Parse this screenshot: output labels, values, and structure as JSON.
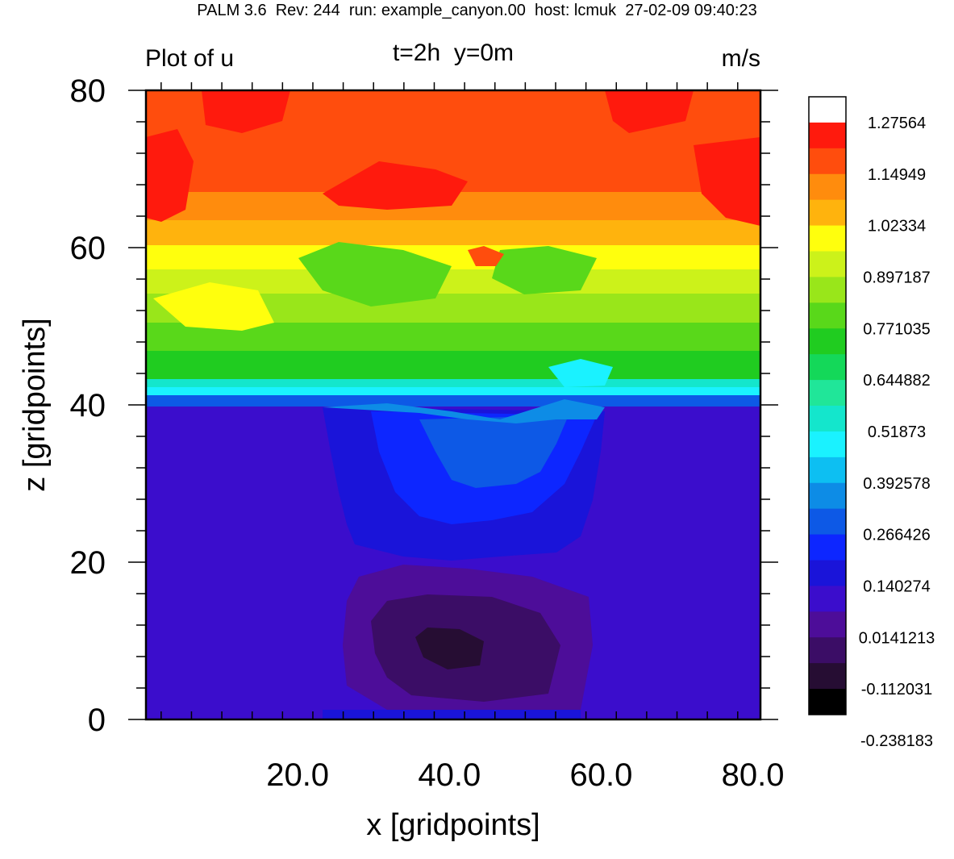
{
  "header": "PALM 3.6  Rev: 244  run: example_canyon.00  host: lcmuk  27-02-09 09:40:23",
  "chart_data": {
    "type": "heatmap",
    "title": "Plot of u",
    "subtitle": "t=2h  y=0m",
    "units": "m/s",
    "xlabel": "x [gridpoints]",
    "ylabel": "z [gridpoints]",
    "xlim": [
      0,
      81
    ],
    "ylim": [
      0,
      80
    ],
    "xticks": [
      "20.0",
      "40.0",
      "60.0",
      "80.0"
    ],
    "xtick_values": [
      20,
      40,
      60,
      80
    ],
    "yticks": [
      "0",
      "20",
      "40",
      "60",
      "80"
    ],
    "ytick_values": [
      0,
      20,
      40,
      60,
      80
    ],
    "grid": false,
    "legend_placement": "right",
    "colorbar_labels": [
      "1.27564",
      "1.14949",
      "1.02334",
      "0.897187",
      "0.771035",
      "0.644882",
      "0.51873",
      "0.392578",
      "0.266426",
      "0.140274",
      "0.0141213",
      "-0.112031",
      "-0.238183"
    ],
    "colorbar_colors": [
      "#ffffff",
      "#ff1a0d",
      "#ff4d0d",
      "#ff8c0d",
      "#ffb30d",
      "#ffff0d",
      "#ccf21a",
      "#99e61a",
      "#59d81a",
      "#20cc20",
      "#14d859",
      "#20e699",
      "#14e6cc",
      "#1af2ff",
      "#0dbff2",
      "#0d8ce6",
      "#0d59e6",
      "#0d26ff",
      "#1a14d9",
      "#3b0dcc",
      "#4d0d99",
      "#3b0d66",
      "#260d33",
      "#000000"
    ]
  }
}
